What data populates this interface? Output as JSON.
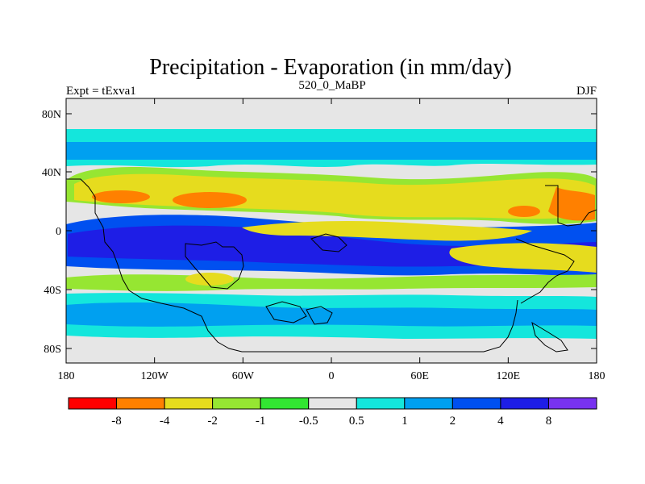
{
  "title": "Precipitation - Evaporation (in mm/day)",
  "left_label": "Expt = tExva1",
  "center_label": "520_0_MaBP",
  "right_label": "DJF",
  "axes": {
    "lat_ticks": [
      "80N",
      "40N",
      "0",
      "40S",
      "80S"
    ],
    "lon_ticks": [
      "180",
      "120W",
      "60W",
      "0",
      "60E",
      "120E",
      "180"
    ]
  },
  "colorbar": {
    "colors": [
      "#ff0000",
      "#ff8000",
      "#e6dc1e",
      "#96e632",
      "#32e632",
      "#e6e6e6",
      "#14e6dc",
      "#00a0f0",
      "#0050f0",
      "#1e1ee6",
      "#7832f0"
    ],
    "labels": [
      "-8",
      "-4",
      "-2",
      "-1",
      "-0.5",
      "0.5",
      "1",
      "2",
      "4",
      "8"
    ]
  },
  "colors": {
    "ocean_band_north": "#14e6dc",
    "neutral": "#e6e6e6",
    "wet": "#00a0f0",
    "very_wet": "#1e1ee6",
    "dry": "#e6dc1e",
    "very_dry": "#ff8000",
    "moist_fringe": "#96e632"
  }
}
